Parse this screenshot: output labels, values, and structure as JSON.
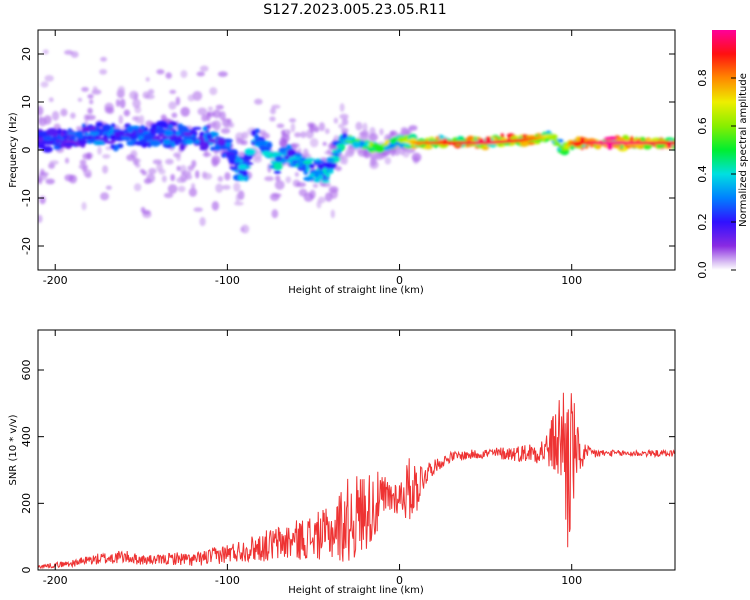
{
  "title": "S127.2023.005.23.05.R11",
  "chart_data": [
    {
      "type": "heatmap",
      "xlabel": "Height of straight line (km)",
      "ylabel": "Frequency (Hz)",
      "xlim": [
        -210,
        160
      ],
      "ylim": [
        -25,
        25
      ],
      "x_ticks": [
        -200,
        -100,
        0,
        100
      ],
      "y_ticks": [
        -20,
        -10,
        0,
        10,
        20
      ],
      "colorbar": {
        "label": "Normalized spectral amplitude",
        "ticks": [
          0.0,
          0.2,
          0.4,
          0.6,
          0.8
        ],
        "range": [
          0,
          1
        ],
        "colormap": "rainbow (violet to magenta)"
      },
      "ridge": {
        "x": [
          -200,
          -180,
          -160,
          -140,
          -120,
          -105,
          -100,
          -95,
          -90,
          -85,
          -80,
          -75,
          -70,
          -65,
          -60,
          -55,
          -50,
          -45,
          -40,
          -35,
          -30,
          -20,
          -10,
          0,
          10,
          30,
          50,
          70,
          80,
          88,
          95,
          100,
          120,
          140,
          160
        ],
        "y": [
          2,
          3,
          3,
          3,
          3,
          2,
          0,
          -3,
          -5,
          2,
          1,
          -1,
          -3,
          0,
          -2,
          -3,
          -4,
          -5,
          -3,
          1,
          2,
          1,
          0.5,
          2,
          1.5,
          1.5,
          1.5,
          2,
          2.5,
          3,
          0,
          1.5,
          1.5,
          1.5,
          1.5
        ],
        "strength": [
          0.25,
          0.3,
          0.3,
          0.3,
          0.3,
          0.3,
          0.3,
          0.35,
          0.4,
          0.35,
          0.35,
          0.4,
          0.4,
          0.35,
          0.4,
          0.4,
          0.4,
          0.4,
          0.35,
          0.45,
          0.5,
          0.6,
          0.7,
          0.55,
          0.75,
          0.85,
          0.9,
          0.85,
          0.75,
          0.6,
          0.5,
          0.8,
          0.95,
          0.9,
          0.85
        ]
      }
    },
    {
      "type": "line",
      "xlabel": "Height of straight line (km)",
      "ylabel": "SNR (10 * v/v)",
      "xlim": [
        -210,
        160
      ],
      "ylim": [
        0,
        720
      ],
      "x_ticks": [
        -200,
        -100,
        0,
        100
      ],
      "y_ticks": [
        0,
        200,
        400,
        600
      ],
      "color": "#ee3333",
      "series": [
        {
          "x": [
            -210,
            -200,
            -190,
            -180,
            -170,
            -160,
            -150,
            -140,
            -130,
            -120,
            -110,
            -100,
            -90,
            -80,
            -70,
            -60,
            -50,
            -40,
            -35,
            -30,
            -25,
            -20,
            -15,
            -10,
            -5,
            0,
            5,
            10,
            15,
            20,
            30,
            40,
            50,
            60,
            70,
            80,
            85,
            90,
            95,
            98,
            100,
            102,
            105,
            110,
            120,
            130,
            140,
            150,
            160
          ],
          "y": [
            10,
            15,
            20,
            30,
            35,
            40,
            30,
            30,
            35,
            30,
            40,
            50,
            60,
            70,
            80,
            90,
            100,
            110,
            130,
            150,
            160,
            180,
            190,
            210,
            220,
            220,
            240,
            250,
            290,
            310,
            340,
            345,
            350,
            350,
            350,
            355,
            360,
            380,
            400,
            300,
            350,
            360,
            340,
            350,
            350,
            350,
            350,
            350,
            350
          ],
          "noise": [
            5,
            8,
            10,
            15,
            20,
            20,
            15,
            15,
            20,
            20,
            25,
            30,
            35,
            45,
            55,
            60,
            70,
            80,
            110,
            130,
            130,
            120,
            110,
            80,
            60,
            50,
            100,
            80,
            40,
            20,
            15,
            15,
            15,
            20,
            25,
            35,
            50,
            100,
            180,
            300,
            250,
            120,
            50,
            20,
            10,
            10,
            10,
            10,
            10
          ]
        }
      ]
    }
  ]
}
